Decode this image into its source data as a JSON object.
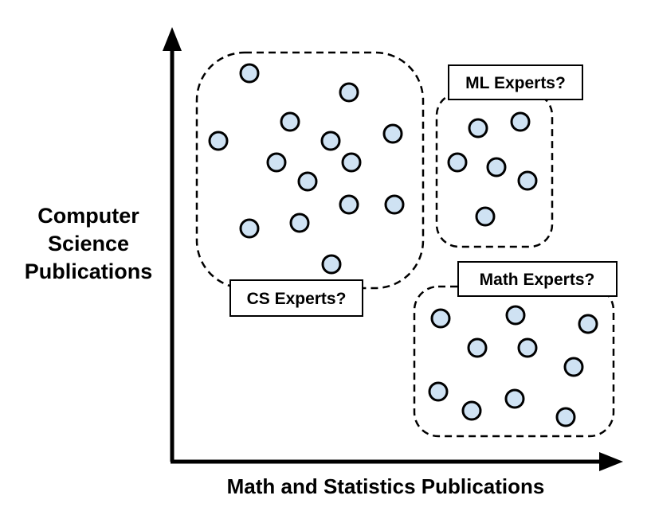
{
  "axes": {
    "x_title": "Math and Statistics Publications",
    "y_title_lines": [
      "Computer",
      "Science",
      "Publications"
    ]
  },
  "clusters": {
    "cs": {
      "label": "CS Experts?"
    },
    "ml": {
      "label": "ML Experts?"
    },
    "math": {
      "label": "Math Experts?"
    }
  },
  "colors": {
    "point_fill": "#cfe2f3",
    "stroke": "#000000",
    "background": "#ffffff"
  }
}
